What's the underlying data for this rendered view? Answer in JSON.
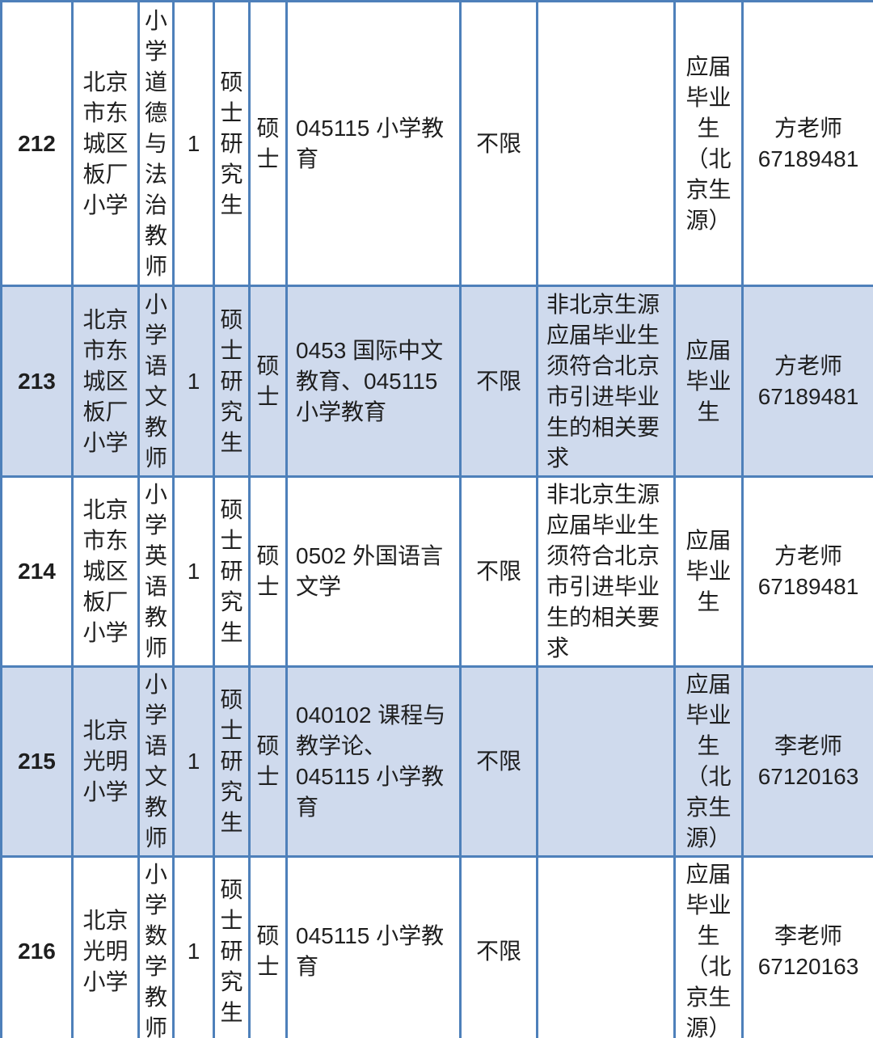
{
  "chart_data": {
    "type": "table",
    "rows": [
      {
        "id": "212",
        "school": "北京市东城区板厂小学",
        "position": "小学道德与法治教师",
        "count": "1",
        "education": "硕士研究生",
        "degree": "硕士",
        "major": "045115 小学教育",
        "age_limit": "不限",
        "requirement": "",
        "source_type": "应届毕业生（北京生源）",
        "contact": "方老师 67189481"
      },
      {
        "id": "213",
        "school": "北京市东城区板厂小学",
        "position": "小学语文教师",
        "count": "1",
        "education": "硕士研究生",
        "degree": "硕士",
        "major": "0453 国际中文教育、045115 小学教育",
        "age_limit": "不限",
        "requirement": "非北京生源应届毕业生须符合北京市引进毕业生的相关要求",
        "source_type": "应届毕业生",
        "contact": "方老师 67189481"
      },
      {
        "id": "214",
        "school": "北京市东城区板厂小学",
        "position": "小学英语教师",
        "count": "1",
        "education": "硕士研究生",
        "degree": "硕士",
        "major": "0502 外国语言文学",
        "age_limit": "不限",
        "requirement": "非北京生源应届毕业生须符合北京市引进毕业生的相关要求",
        "source_type": "应届毕业生",
        "contact": "方老师 67189481"
      },
      {
        "id": "215",
        "school": "北京光明小学",
        "position": "小学语文教师",
        "count": "1",
        "education": "硕士研究生",
        "degree": "硕士",
        "major": "040102 课程与教学论、045115 小学教育",
        "age_limit": "不限",
        "requirement": "",
        "source_type": "应届毕业生（北京生源）",
        "contact": "李老师 67120163"
      },
      {
        "id": "216",
        "school": "北京光明小学",
        "position": "小学数学教师",
        "count": "1",
        "education": "硕士研究生",
        "degree": "硕士",
        "major": "045115 小学教育",
        "age_limit": "不限",
        "requirement": "",
        "source_type": "应届毕业生（北京生源）",
        "contact": "李老师 67120163"
      }
    ]
  },
  "colors": {
    "border": "#4e80ba",
    "shaded_row": "#cfdaed",
    "row_bg": "#ffffff",
    "text": "#1f1f1f"
  }
}
